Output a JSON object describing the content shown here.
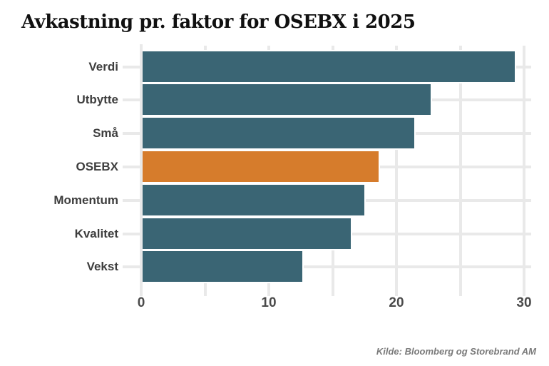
{
  "title": "Avkastning pr. faktor for OSEBX i 2025",
  "source": "Kilde: Bloomberg og Storebrand AM",
  "colors": {
    "bar": "#3a6574",
    "highlight_bar": "#d67c2c",
    "grid": "#e9e9e9",
    "title_text": "#101010",
    "label_text": "#3e3e3e",
    "tick_text": "#4a4a4a",
    "source_text": "#7a7a7a",
    "background": "#ffffff"
  },
  "chart_data": {
    "type": "bar",
    "orientation": "horizontal",
    "title": "Avkastning pr. faktor for OSEBX i 2025",
    "categories": [
      "Verdi",
      "Utbytte",
      "Små",
      "OSEBX",
      "Momentum",
      "Kvalitet",
      "Vekst"
    ],
    "values": [
      29.3,
      22.7,
      21.4,
      18.6,
      17.5,
      16.4,
      12.6
    ],
    "highlight_category": "OSEBX",
    "xlabel": "",
    "ylabel": "",
    "xlim": [
      0,
      30
    ],
    "xtick_labels": [
      0,
      10,
      20,
      30
    ],
    "minor_tick_step": 5,
    "grid": true,
    "legend": false,
    "source": "Kilde: Bloomberg og Storebrand AM"
  }
}
